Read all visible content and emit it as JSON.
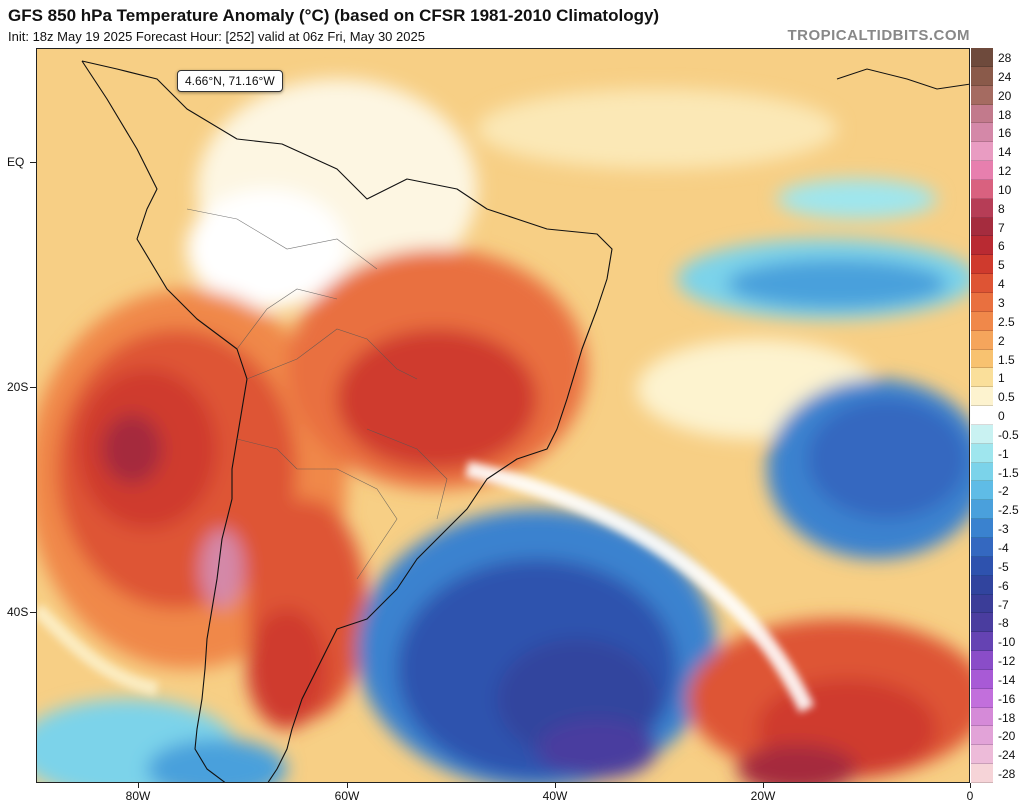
{
  "title": "GFS 850 hPa Temperature Anomaly (°C) (based on CFSR 1981-2010 Climatology)",
  "subtitle": "Init: 18z May 19 2025   Forecast Hour: [252]   valid at 06z Fri, May 30 2025",
  "brand": "TROPICALTIDBITS.COM",
  "cursor_readout": "4.66°N, 71.16°W",
  "axes": {
    "lat_labels": [
      "EQ",
      "20S",
      "40S"
    ],
    "lon_labels": [
      "80W",
      "60W",
      "40W",
      "20W",
      "0"
    ]
  },
  "colorbar": [
    {
      "label": "28",
      "color": "#6e4a3c"
    },
    {
      "label": "24",
      "color": "#8a5a4a"
    },
    {
      "label": "20",
      "color": "#a56b61"
    },
    {
      "label": "18",
      "color": "#c27a8c"
    },
    {
      "label": "16",
      "color": "#d488a8"
    },
    {
      "label": "14",
      "color": "#e99cc2"
    },
    {
      "label": "12",
      "color": "#e77fae"
    },
    {
      "label": "10",
      "color": "#d9617f"
    },
    {
      "label": "8",
      "color": "#b63d56"
    },
    {
      "label": "7",
      "color": "#a52c3e"
    },
    {
      "label": "6",
      "color": "#b92a32"
    },
    {
      "label": "5",
      "color": "#cf3a2d"
    },
    {
      "label": "4",
      "color": "#de5434"
    },
    {
      "label": "3",
      "color": "#e9703f"
    },
    {
      "label": "2.5",
      "color": "#f0884a"
    },
    {
      "label": "2",
      "color": "#f5a55c"
    },
    {
      "label": "1.5",
      "color": "#f8c270"
    },
    {
      "label": "1",
      "color": "#fadf9a"
    },
    {
      "label": "0.5",
      "color": "#fdf3cf"
    },
    {
      "label": "0",
      "color": "#ffffff"
    },
    {
      "label": "-0.5",
      "color": "#c9f2f2"
    },
    {
      "label": "-1",
      "color": "#9fe6ee"
    },
    {
      "label": "-1.5",
      "color": "#7bd3ea"
    },
    {
      "label": "-2",
      "color": "#5fbce6"
    },
    {
      "label": "-2.5",
      "color": "#4aa0dc"
    },
    {
      "label": "-3",
      "color": "#3a82cf"
    },
    {
      "label": "-4",
      "color": "#3468c0"
    },
    {
      "label": "-5",
      "color": "#2e52ae"
    },
    {
      "label": "-6",
      "color": "#31449e"
    },
    {
      "label": "-7",
      "color": "#3b3d98"
    },
    {
      "label": "-8",
      "color": "#4a3d9f"
    },
    {
      "label": "-10",
      "color": "#6543b3"
    },
    {
      "label": "-12",
      "color": "#8a4dc8"
    },
    {
      "label": "-14",
      "color": "#a85ad6"
    },
    {
      "label": "-16",
      "color": "#c26fdc"
    },
    {
      "label": "-18",
      "color": "#d58ad8"
    },
    {
      "label": "-20",
      "color": "#e2a3d8"
    },
    {
      "label": "-24",
      "color": "#edbbd9"
    },
    {
      "label": "-28",
      "color": "#f6d4d8"
    }
  ]
}
